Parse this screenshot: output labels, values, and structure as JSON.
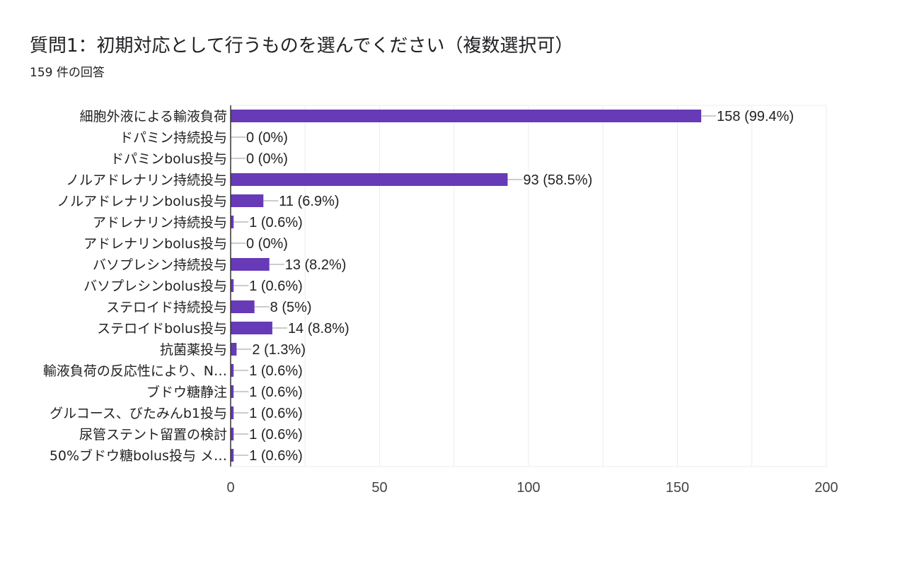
{
  "header": {
    "title": "質問1：初期対応として行うものを選んでください（複数選択可）",
    "response_count": "159 件の回答"
  },
  "colors": {
    "bar": "#673ab7",
    "grid": "#ececec",
    "axis": "#333333",
    "leader": "#999999"
  },
  "chart_data": {
    "type": "bar",
    "orientation": "horizontal",
    "title": "質問1：初期対応として行うものを選んでください（複数選択可）",
    "subtitle": "159 件の回答",
    "categories": [
      "細胞外液による輸液負荷",
      "ドパミン持続投与",
      "ドパミンbolus投与",
      "ノルアドレナリン持続投与",
      "ノルアドレナリンbolus投与",
      "アドレナリン持続投与",
      "アドレナリンbolus投与",
      "バソプレシン持続投与",
      "バソプレシンbolus投与",
      "ステロイド持続投与",
      "ステロイドbolus投与",
      "抗菌薬投与",
      "輸液負荷の反応性により、N…",
      "ブドウ糖静注",
      "グルコース、びたみんb1投与",
      "尿管ステント留置の検討",
      "50%ブドウ糖bolus投与 メ…"
    ],
    "values": [
      158,
      0,
      0,
      93,
      11,
      1,
      0,
      13,
      1,
      8,
      14,
      2,
      1,
      1,
      1,
      1,
      1
    ],
    "value_labels": [
      "158 (99.4%)",
      "0 (0%)",
      "0 (0%)",
      "93 (58.5%)",
      "11 (6.9%)",
      "1 (0.6%)",
      "0 (0%)",
      "13 (8.2%)",
      "1 (0.6%)",
      "8 (5%)",
      "14 (8.8%)",
      "2 (1.3%)",
      "1 (0.6%)",
      "1 (0.6%)",
      "1 (0.6%)",
      "1 (0.6%)",
      "1 (0.6%)"
    ],
    "xlim": [
      0,
      200
    ],
    "xticks": [
      0,
      50,
      100,
      150,
      200
    ],
    "xtick_labels": [
      "0",
      "50",
      "100",
      "150",
      "200"
    ],
    "grid": true,
    "legend": "none"
  }
}
